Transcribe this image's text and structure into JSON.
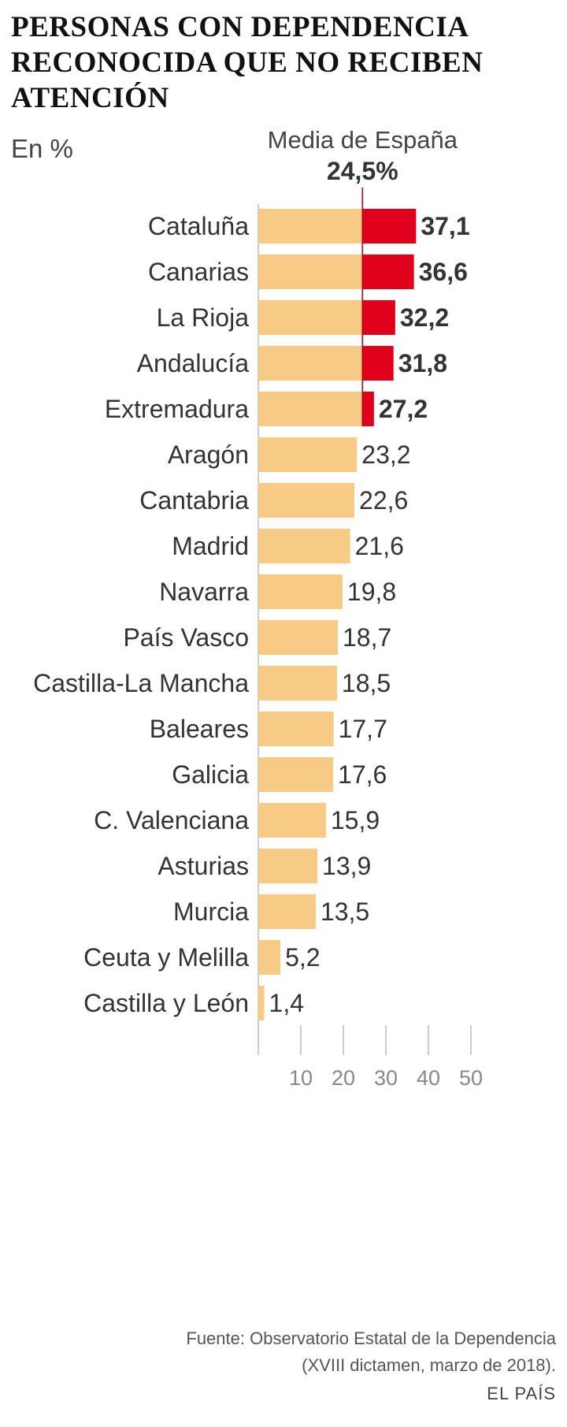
{
  "header": {
    "title_lines": [
      "PERSONAS CON DEPENDENCIA",
      "RECONOCIDA QUE NO RECIBEN",
      "ATENCIÓN"
    ],
    "subtitle": "En %"
  },
  "chart_data": {
    "type": "bar",
    "orientation": "horizontal",
    "title": "PERSONAS CON DEPENDENCIA RECONOCIDA QUE NO RECIBEN ATENCIÓN",
    "subtitle": "En %",
    "categories": [
      "Cataluña",
      "Canarias",
      "La Rioja",
      "Andalucía",
      "Extremadura",
      "Aragón",
      "Cantabria",
      "Madrid",
      "Navarra",
      "País Vasco",
      "Castilla-La Mancha",
      "Baleares",
      "Galicia",
      "C. Valenciana",
      "Asturias",
      "Murcia",
      "Ceuta y Melilla",
      "Castilla y León"
    ],
    "values": [
      37.1,
      36.6,
      32.2,
      31.8,
      27.2,
      23.2,
      22.6,
      21.6,
      19.8,
      18.7,
      18.5,
      17.7,
      17.6,
      15.9,
      13.9,
      13.5,
      5.2,
      1.4
    ],
    "value_labels": [
      "37,1",
      "36,6",
      "32,2",
      "31,8",
      "27,2",
      "23,2",
      "22,6",
      "21,6",
      "19,8",
      "18,7",
      "18,5",
      "17,7",
      "17,6",
      "15,9",
      "13,9",
      "13,5",
      "5,2",
      "1,4"
    ],
    "reference_line": {
      "label": "Media de España",
      "value": 24.5,
      "value_label": "24,5%"
    },
    "xlim": [
      0,
      50
    ],
    "ticks": [
      10,
      20,
      30,
      40,
      50
    ],
    "tick_labels": [
      "10",
      "20",
      "30",
      "40",
      "50"
    ],
    "grid": false,
    "colors": {
      "base": "#F7CB85",
      "above_average": "#E0001B",
      "reference_line": "#B0001A",
      "axis": "#BBBBBB"
    }
  },
  "footer": {
    "source_lines": [
      "Fuente: Observatorio Estatal de la Dependencia",
      "(XVIII dictamen, marzo de 2018)."
    ],
    "brand": "EL PAÍS"
  }
}
